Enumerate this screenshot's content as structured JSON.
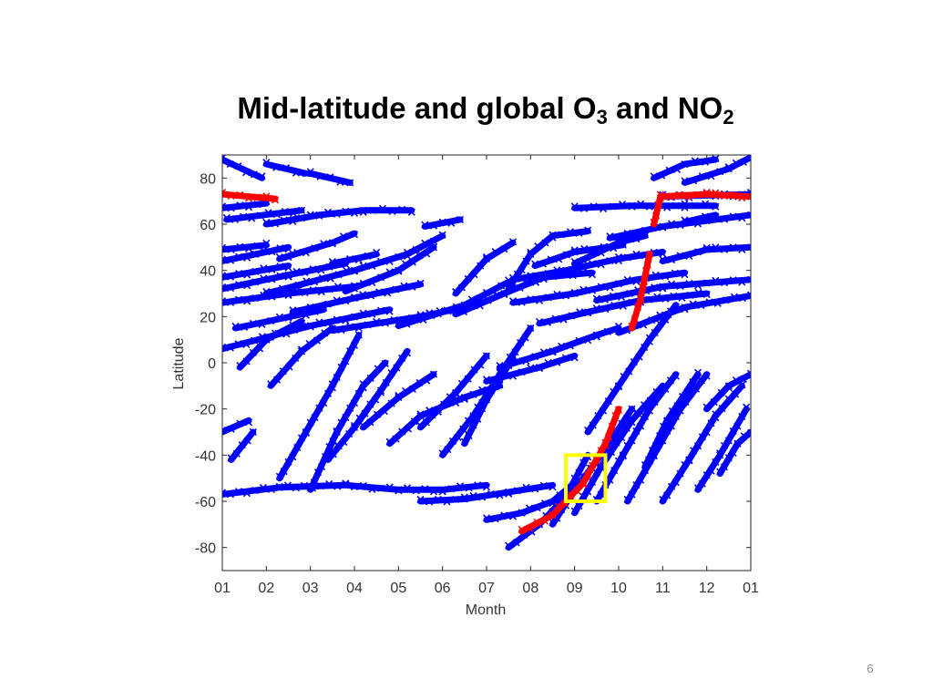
{
  "slide": {
    "title_main": "Mid-latitude and global O",
    "title_sub1": "3",
    "title_mid": " and NO",
    "title_sub2": "2",
    "page_number": "6"
  },
  "chart_data": {
    "type": "scatter",
    "title": "",
    "xlabel": "Month",
    "ylabel": "Latitude",
    "xlim": [
      1,
      13
    ],
    "ylim": [
      -90,
      90
    ],
    "x_ticks": [
      1,
      2,
      3,
      4,
      5,
      6,
      7,
      8,
      9,
      10,
      11,
      12,
      13
    ],
    "x_tick_labels": [
      "01",
      "02",
      "03",
      "04",
      "05",
      "06",
      "07",
      "08",
      "09",
      "10",
      "11",
      "12",
      "01"
    ],
    "y_ticks": [
      80,
      60,
      40,
      20,
      0,
      -20,
      -40,
      -60,
      -80
    ],
    "y_tick_labels": [
      "80",
      "60",
      "40",
      "20",
      "0",
      "-20",
      "-40",
      "-60",
      "-80"
    ],
    "grid": false,
    "marker": "x",
    "colors": {
      "background_tracks": "#0000ff",
      "highlight_track": "#ff0000",
      "box": "#ffff00",
      "axis": "#000000"
    },
    "series": [
      {
        "style": "background",
        "color": "#0000ff",
        "segments": [
          [
            [
              1.0,
              88
            ],
            [
              1.9,
              80
            ]
          ],
          [
            [
              2.0,
              86
            ],
            [
              2.9,
              82
            ]
          ],
          [
            [
              3.0,
              82
            ],
            [
              3.9,
              78
            ]
          ],
          [
            [
              1.0,
              67
            ],
            [
              2.0,
              69
            ]
          ],
          [
            [
              1.1,
              62
            ],
            [
              2.8,
              66
            ]
          ],
          [
            [
              2.0,
              60
            ],
            [
              3.2,
              64
            ],
            [
              4.2,
              66
            ],
            [
              5.3,
              66
            ]
          ],
          [
            [
              5.6,
              59
            ],
            [
              6.4,
              62
            ]
          ],
          [
            [
              1.0,
              49
            ],
            [
              2.0,
              51
            ]
          ],
          [
            [
              1.0,
              44
            ],
            [
              2.5,
              50
            ]
          ],
          [
            [
              2.3,
              45
            ],
            [
              3.5,
              52
            ],
            [
              4.0,
              56
            ]
          ],
          [
            [
              3.5,
              43
            ],
            [
              4.5,
              47
            ]
          ],
          [
            [
              1.0,
              37
            ],
            [
              2.5,
              42
            ]
          ],
          [
            [
              1.0,
              32
            ],
            [
              2.5,
              38
            ],
            [
              3.8,
              43
            ]
          ],
          [
            [
              2.0,
              30
            ],
            [
              4.0,
              40
            ],
            [
              5.2,
              47
            ],
            [
              6.0,
              55
            ]
          ],
          [
            [
              3.8,
              31
            ],
            [
              5.0,
              40
            ],
            [
              5.8,
              50
            ]
          ],
          [
            [
              1.0,
              26
            ],
            [
              2.5,
              30
            ],
            [
              4.0,
              33
            ]
          ],
          [
            [
              2.6,
              22
            ],
            [
              4.0,
              28
            ],
            [
              5.5,
              34
            ]
          ],
          [
            [
              1.3,
              15
            ],
            [
              3.3,
              23
            ]
          ],
          [
            [
              1.0,
              6
            ],
            [
              3.0,
              16
            ],
            [
              4.8,
              23
            ]
          ],
          [
            [
              3.5,
              14
            ],
            [
              5.5,
              20
            ],
            [
              6.5,
              24
            ]
          ],
          [
            [
              5.0,
              16
            ],
            [
              6.5,
              25
            ],
            [
              7.5,
              35
            ]
          ],
          [
            [
              6.3,
              30
            ],
            [
              7.0,
              45
            ],
            [
              7.6,
              52
            ]
          ],
          [
            [
              7.5,
              32
            ],
            [
              8.0,
              47
            ],
            [
              8.5,
              55
            ],
            [
              9.3,
              57
            ]
          ],
          [
            [
              8.1,
              42
            ],
            [
              9.0,
              48
            ],
            [
              10.1,
              51
            ]
          ],
          [
            [
              9.0,
              43
            ],
            [
              10.0,
              52
            ],
            [
              10.6,
              55
            ]
          ],
          [
            [
              7.6,
              36
            ],
            [
              8.8,
              40
            ],
            [
              10.0,
              45
            ],
            [
              11.0,
              48
            ]
          ],
          [
            [
              6.3,
              21
            ],
            [
              7.4,
              30
            ],
            [
              8.3,
              37
            ],
            [
              9.4,
              39
            ]
          ],
          [
            [
              7.6,
              26
            ],
            [
              9.0,
              30
            ],
            [
              10.4,
              36
            ],
            [
              11.5,
              39
            ]
          ],
          [
            [
              8.2,
              17
            ],
            [
              9.3,
              22
            ],
            [
              10.5,
              27
            ],
            [
              12.0,
              30
            ]
          ],
          [
            [
              9.5,
              27
            ],
            [
              11.0,
              33
            ],
            [
              13.0,
              36
            ]
          ],
          [
            [
              10.0,
              13
            ],
            [
              11.5,
              24
            ],
            [
              13.0,
              29
            ]
          ],
          [
            [
              11.0,
              44
            ],
            [
              12.0,
              49
            ],
            [
              13.0,
              50
            ]
          ],
          [
            [
              9.0,
              67
            ],
            [
              10.3,
              68
            ],
            [
              11.5,
              68
            ],
            [
              12.2,
              68
            ]
          ],
          [
            [
              9.8,
              54
            ],
            [
              11.0,
              59
            ],
            [
              13.0,
              64
            ]
          ],
          [
            [
              11.0,
              72
            ],
            [
              13.0,
              73
            ]
          ],
          [
            [
              10.8,
              80
            ],
            [
              11.5,
              86
            ],
            [
              12.2,
              88
            ]
          ],
          [
            [
              11.5,
              78
            ],
            [
              12.5,
              84
            ],
            [
              13.0,
              89
            ]
          ],
          [
            [
              11.5,
              61
            ],
            [
              12.2,
              64
            ]
          ],
          [
            [
              1.4,
              -2
            ],
            [
              2.0,
              10
            ],
            [
              2.8,
              18
            ]
          ],
          [
            [
              2.1,
              -10
            ],
            [
              2.8,
              5
            ],
            [
              3.5,
              15
            ]
          ],
          [
            [
              1.0,
              -30
            ],
            [
              1.6,
              -25
            ]
          ],
          [
            [
              1.2,
              -42
            ],
            [
              1.7,
              -30
            ]
          ],
          [
            [
              2.3,
              -50
            ],
            [
              2.9,
              -30
            ],
            [
              3.5,
              -10
            ],
            [
              4.1,
              12
            ]
          ],
          [
            [
              3.0,
              -55
            ],
            [
              3.6,
              -30
            ],
            [
              4.2,
              -10
            ],
            [
              4.7,
              0
            ]
          ],
          [
            [
              3.4,
              -42
            ],
            [
              4.0,
              -28
            ],
            [
              4.6,
              -12
            ],
            [
              5.2,
              5
            ]
          ],
          [
            [
              4.2,
              -28
            ],
            [
              5.0,
              -15
            ],
            [
              5.8,
              -5
            ]
          ],
          [
            [
              4.8,
              -35
            ],
            [
              5.5,
              -23
            ],
            [
              6.5,
              -15
            ],
            [
              7.3,
              -10
            ]
          ],
          [
            [
              5.5,
              -28
            ],
            [
              6.3,
              -13
            ],
            [
              7.0,
              3
            ]
          ],
          [
            [
              6.0,
              -40
            ],
            [
              6.7,
              -23
            ],
            [
              7.3,
              -5
            ],
            [
              8.0,
              15
            ]
          ],
          [
            [
              6.5,
              -35
            ],
            [
              7.0,
              -16
            ],
            [
              7.6,
              2
            ]
          ],
          [
            [
              1.0,
              -57
            ],
            [
              2.3,
              -54
            ],
            [
              3.8,
              -53
            ]
          ],
          [
            [
              3.8,
              -53
            ],
            [
              5.0,
              -55
            ],
            [
              6.0,
              -55
            ],
            [
              7.0,
              -53
            ]
          ],
          [
            [
              5.5,
              -60
            ],
            [
              6.5,
              -59
            ],
            [
              7.5,
              -56
            ],
            [
              8.5,
              -53
            ]
          ],
          [
            [
              7.0,
              -68
            ],
            [
              7.8,
              -65
            ],
            [
              8.5,
              -60
            ],
            [
              9.0,
              -52
            ]
          ],
          [
            [
              7.5,
              -80
            ],
            [
              8.2,
              -70
            ],
            [
              8.8,
              -58
            ],
            [
              9.3,
              -40
            ]
          ],
          [
            [
              8.5,
              -70
            ],
            [
              9.0,
              -55
            ],
            [
              9.6,
              -40
            ],
            [
              10.3,
              -20
            ]
          ],
          [
            [
              9.0,
              -65
            ],
            [
              9.6,
              -45
            ],
            [
              10.3,
              -25
            ],
            [
              11.0,
              -10
            ]
          ],
          [
            [
              9.5,
              -60
            ],
            [
              10.1,
              -40
            ],
            [
              10.7,
              -20
            ],
            [
              11.3,
              -5
            ]
          ],
          [
            [
              10.2,
              -60
            ],
            [
              10.8,
              -40
            ],
            [
              11.4,
              -20
            ],
            [
              12.0,
              -5
            ]
          ],
          [
            [
              11.0,
              -60
            ],
            [
              11.6,
              -42
            ],
            [
              12.2,
              -23
            ],
            [
              12.8,
              -10
            ]
          ],
          [
            [
              11.8,
              -55
            ],
            [
              12.3,
              -40
            ],
            [
              12.9,
              -20
            ]
          ],
          [
            [
              12.3,
              -48
            ],
            [
              12.7,
              -35
            ],
            [
              13.0,
              -30
            ]
          ],
          [
            [
              9.3,
              -30
            ],
            [
              10.0,
              -10
            ],
            [
              10.7,
              10
            ],
            [
              11.3,
              25
            ]
          ],
          [
            [
              10.6,
              -45
            ],
            [
              11.1,
              -25
            ],
            [
              11.8,
              -5
            ]
          ],
          [
            [
              12.0,
              -20
            ],
            [
              12.5,
              -10
            ],
            [
              13.0,
              -5
            ]
          ],
          [
            [
              7.3,
              -2
            ],
            [
              8.5,
              5
            ],
            [
              9.5,
              12
            ],
            [
              10.0,
              15
            ]
          ],
          [
            [
              7.0,
              -8
            ],
            [
              8.2,
              -2
            ],
            [
              9.0,
              3
            ]
          ]
        ]
      },
      {
        "style": "highlight",
        "color": "#ff0000",
        "segments": [
          [
            [
              1.0,
              73
            ],
            [
              2.2,
              71
            ]
          ],
          [
            [
              7.8,
              -73
            ],
            [
              8.5,
              -66
            ],
            [
              9.2,
              -52
            ],
            [
              9.7,
              -35
            ],
            [
              10.0,
              -20
            ]
          ],
          [
            [
              10.3,
              15
            ],
            [
              10.5,
              28
            ],
            [
              10.7,
              47
            ]
          ],
          [
            [
              10.8,
              60
            ],
            [
              10.95,
              72
            ]
          ],
          [
            [
              10.95,
              72
            ],
            [
              12.0,
              73
            ],
            [
              13.0,
              72
            ]
          ]
        ]
      }
    ],
    "highlight_box": {
      "x": [
        8.8,
        9.7
      ],
      "y": [
        -60,
        -40
      ]
    }
  }
}
